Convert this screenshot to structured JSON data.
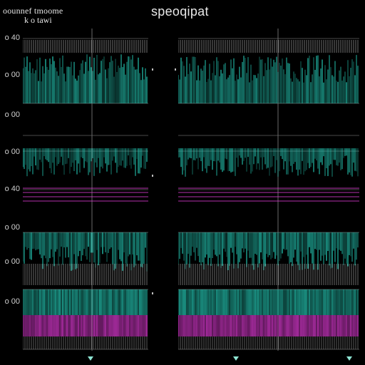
{
  "header": {
    "left_line1": "oounnef tmoome",
    "left_line2": "k o tawi",
    "title": "speoqipat"
  },
  "rows": [
    {
      "label": "o 40",
      "style": "comb-teal",
      "top": 50,
      "h": 95
    },
    {
      "label": "o 00",
      "style": "empty",
      "top": 150,
      "h": 40
    },
    {
      "label": "o 00",
      "style": "wave-teal",
      "top": 195,
      "h": 60
    },
    {
      "label": "o 40",
      "style": "empty",
      "top": 260,
      "h": 0
    },
    {
      "label": "o 00",
      "style": "comb-teal",
      "top": 325,
      "h": 75
    },
    {
      "label": "o 00",
      "style": "magenta-teal",
      "top": 405,
      "h": 67
    }
  ],
  "y_labels": [
    "o 40",
    "o 00",
    "o 00",
    "o 00",
    "o 40",
    "o 00",
    "o 00",
    "o 00"
  ],
  "markers": [
    "marker-left",
    "marker-mid",
    "marker-right"
  ],
  "colors": {
    "teal": "#27d5c0",
    "teal_dark": "#0b5f58",
    "magenta": "#e23bd8",
    "grid": "#6d6d6d",
    "background": "#000000"
  }
}
